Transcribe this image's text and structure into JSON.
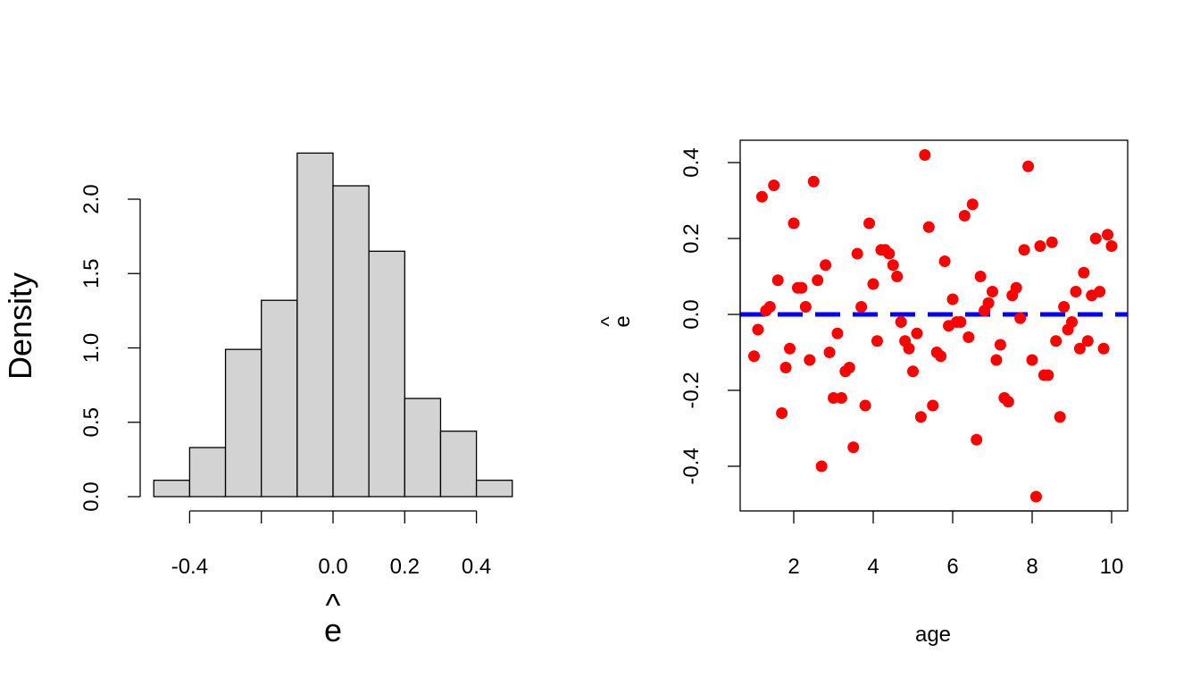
{
  "chart_data": [
    {
      "type": "bar",
      "subtype": "histogram",
      "xlabel": "e",
      "xlabel_has_hat": true,
      "ylabel": "Density",
      "bins": [
        [
          -0.5,
          -0.4
        ],
        [
          -0.4,
          -0.3
        ],
        [
          -0.3,
          -0.2
        ],
        [
          -0.2,
          -0.1
        ],
        [
          -0.1,
          0.0
        ],
        [
          0.0,
          0.1
        ],
        [
          0.1,
          0.2
        ],
        [
          0.2,
          0.3
        ],
        [
          0.3,
          0.4
        ],
        [
          0.4,
          0.5
        ]
      ],
      "values": [
        0.11,
        0.33,
        0.99,
        1.32,
        2.31,
        2.09,
        1.65,
        0.66,
        0.44,
        0.11
      ],
      "xticks": [
        -0.4,
        -0.2,
        0.0,
        0.2,
        0.4
      ],
      "xtick_labels": [
        "-0.4",
        "",
        "0.0",
        "0.2",
        "0.4"
      ],
      "yticks": [
        0.0,
        0.5,
        1.0,
        1.5,
        2.0
      ],
      "ytick_labels": [
        "0.0",
        "0.5",
        "1.0",
        "1.5",
        "2.0"
      ],
      "bar_fill": "#d3d3d3",
      "bar_stroke": "#000000"
    },
    {
      "type": "scatter",
      "xlabel": "age",
      "ylabel": "e",
      "ylabel_has_hat": true,
      "xlim": [
        0.9,
        10.1
      ],
      "ylim": [
        -0.52,
        0.46
      ],
      "xticks": [
        2,
        4,
        6,
        8,
        10
      ],
      "xtick_labels": [
        "2",
        "4",
        "6",
        "8",
        "10"
      ],
      "yticks": [
        -0.4,
        -0.2,
        0.0,
        0.2,
        0.4
      ],
      "ytick_labels": [
        "-0.4",
        "-0.2",
        "0.0",
        "0.2",
        "0.4"
      ],
      "point_color": "#ff0000",
      "reference_line": {
        "y": 0,
        "style": "dashed",
        "color": "#0000ff"
      },
      "points": [
        [
          1.0,
          -0.11
        ],
        [
          1.1,
          -0.04
        ],
        [
          1.2,
          0.31
        ],
        [
          1.3,
          0.01
        ],
        [
          1.4,
          0.02
        ],
        [
          1.5,
          0.34
        ],
        [
          1.6,
          0.09
        ],
        [
          1.7,
          -0.26
        ],
        [
          1.8,
          -0.14
        ],
        [
          1.9,
          -0.09
        ],
        [
          2.0,
          0.24
        ],
        [
          2.1,
          0.07
        ],
        [
          2.2,
          0.07
        ],
        [
          2.3,
          0.02
        ],
        [
          2.4,
          -0.12
        ],
        [
          2.5,
          0.35
        ],
        [
          2.6,
          0.09
        ],
        [
          2.7,
          -0.4
        ],
        [
          2.8,
          0.13
        ],
        [
          2.9,
          -0.1
        ],
        [
          3.0,
          -0.22
        ],
        [
          3.1,
          -0.05
        ],
        [
          3.2,
          -0.22
        ],
        [
          3.3,
          -0.15
        ],
        [
          3.4,
          -0.14
        ],
        [
          3.5,
          -0.35
        ],
        [
          3.6,
          0.16
        ],
        [
          3.7,
          0.02
        ],
        [
          3.8,
          -0.24
        ],
        [
          3.9,
          0.24
        ],
        [
          4.0,
          0.08
        ],
        [
          4.1,
          -0.07
        ],
        [
          4.2,
          0.17
        ],
        [
          4.3,
          0.17
        ],
        [
          4.4,
          0.16
        ],
        [
          4.5,
          0.13
        ],
        [
          4.6,
          0.1
        ],
        [
          4.7,
          -0.02
        ],
        [
          4.8,
          -0.07
        ],
        [
          4.9,
          -0.09
        ],
        [
          5.0,
          -0.15
        ],
        [
          5.1,
          -0.05
        ],
        [
          5.2,
          -0.27
        ],
        [
          5.3,
          0.42
        ],
        [
          5.4,
          0.23
        ],
        [
          5.5,
          -0.24
        ],
        [
          5.6,
          -0.1
        ],
        [
          5.7,
          -0.11
        ],
        [
          5.8,
          0.14
        ],
        [
          5.9,
          -0.03
        ],
        [
          6.0,
          0.04
        ],
        [
          6.1,
          -0.02
        ],
        [
          6.2,
          -0.02
        ],
        [
          6.3,
          0.26
        ],
        [
          6.4,
          -0.06
        ],
        [
          6.5,
          0.29
        ],
        [
          6.6,
          -0.33
        ],
        [
          6.7,
          0.1
        ],
        [
          6.8,
          0.01
        ],
        [
          6.9,
          0.03
        ],
        [
          7.0,
          0.06
        ],
        [
          7.1,
          -0.12
        ],
        [
          7.2,
          -0.08
        ],
        [
          7.3,
          -0.22
        ],
        [
          7.4,
          -0.23
        ],
        [
          7.5,
          0.05
        ],
        [
          7.6,
          0.07
        ],
        [
          7.7,
          -0.01
        ],
        [
          7.8,
          0.17
        ],
        [
          7.9,
          0.39
        ],
        [
          8.0,
          -0.12
        ],
        [
          8.1,
          -0.48
        ],
        [
          8.2,
          0.18
        ],
        [
          8.3,
          -0.16
        ],
        [
          8.4,
          -0.16
        ],
        [
          8.5,
          0.19
        ],
        [
          8.6,
          -0.07
        ],
        [
          8.7,
          -0.27
        ],
        [
          8.8,
          0.02
        ],
        [
          8.9,
          -0.04
        ],
        [
          9.0,
          -0.02
        ],
        [
          9.1,
          0.06
        ],
        [
          9.2,
          -0.09
        ],
        [
          9.3,
          0.11
        ],
        [
          9.4,
          -0.07
        ],
        [
          9.5,
          0.05
        ],
        [
          9.6,
          0.2
        ],
        [
          9.7,
          0.06
        ],
        [
          9.8,
          -0.09
        ],
        [
          9.9,
          0.21
        ],
        [
          10.0,
          0.18
        ]
      ]
    }
  ]
}
